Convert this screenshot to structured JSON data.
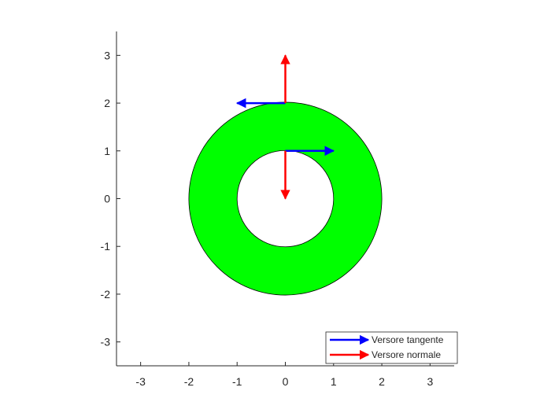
{
  "chart_data": {
    "type": "vector-field",
    "title": "",
    "xlabel": "",
    "ylabel": "",
    "xlim": [
      -3.5,
      3.5
    ],
    "ylim": [
      -3.5,
      3.5
    ],
    "xticks": [
      -3,
      -2,
      -1,
      0,
      1,
      2,
      3
    ],
    "yticks": [
      -3,
      -2,
      -1,
      0,
      1,
      2,
      3
    ],
    "xtick_labels": [
      "-3",
      "-2",
      "-1",
      "0",
      "1",
      "2",
      "3"
    ],
    "ytick_labels": [
      "-3",
      "-2",
      "-1",
      "0",
      "1",
      "2",
      "3"
    ],
    "grid": false,
    "annulus": {
      "center": [
        0,
        0
      ],
      "inner_radius": 1,
      "outer_radius": 2,
      "fill_color": "#00ff00",
      "edge_color": "#000000"
    },
    "series": [
      {
        "name": "Versore tangente",
        "color": "#0000ff",
        "vectors": [
          {
            "x": 0,
            "y": 2,
            "u": -1,
            "v": 0
          },
          {
            "x": 0,
            "y": 1,
            "u": 1,
            "v": 0
          }
        ]
      },
      {
        "name": "Versore normale",
        "color": "#ff0000",
        "vectors": [
          {
            "x": 0,
            "y": 2,
            "u": 0,
            "v": 1
          },
          {
            "x": 0,
            "y": 1,
            "u": 0,
            "v": -1
          }
        ]
      }
    ],
    "legend": {
      "position": "bottom-right"
    }
  }
}
